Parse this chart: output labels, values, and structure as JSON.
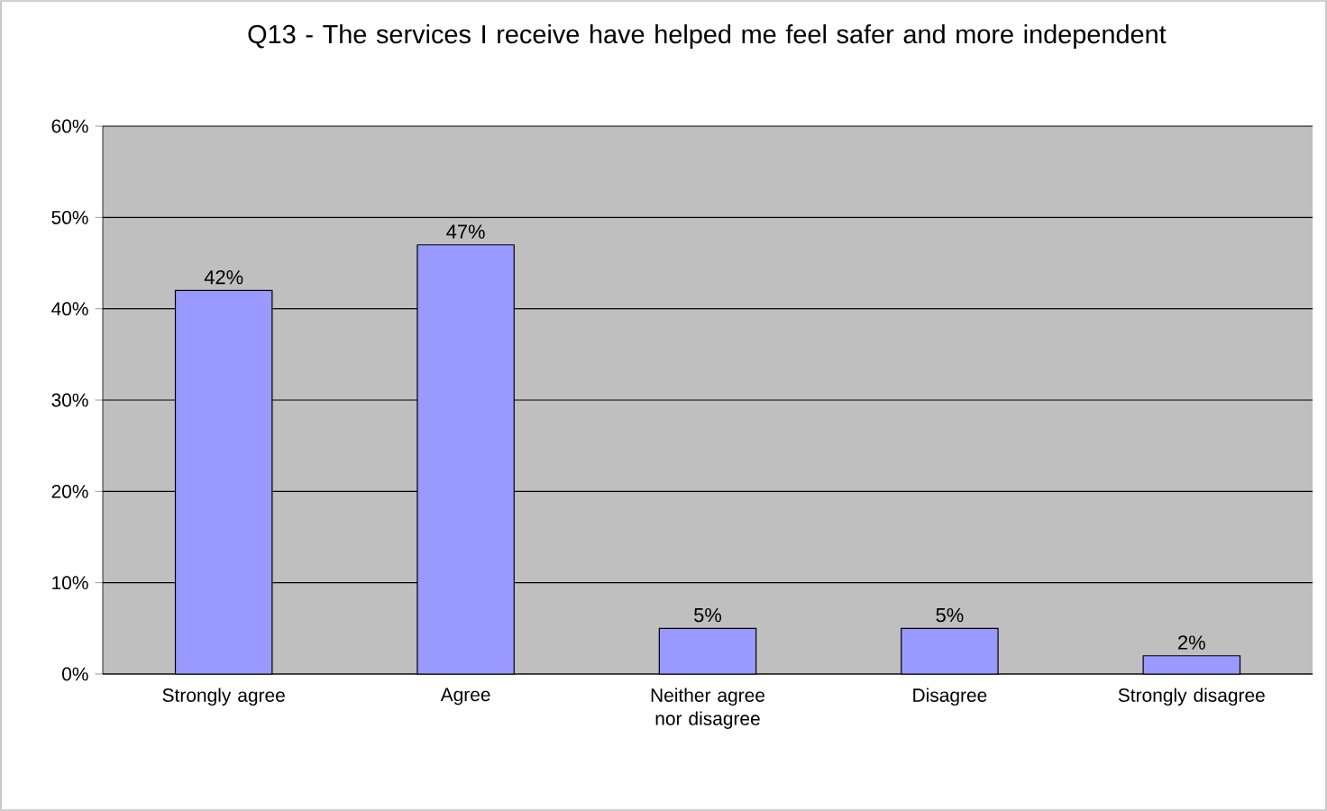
{
  "chart_data": {
    "type": "bar",
    "title": "Q13 - The services I receive have helped me feel safer and more independent",
    "categories": [
      "Strongly agree",
      "Agree",
      "Neither agree nor disagree",
      "Disagree",
      "Strongly disagree"
    ],
    "values": [
      42,
      47,
      5,
      5,
      2
    ],
    "value_labels": [
      "42%",
      "47%",
      "5%",
      "5%",
      "2%"
    ],
    "color": "#9999ff",
    "ylim": [
      0,
      60
    ],
    "yticks": [
      {
        "value": 0,
        "label": "0%"
      },
      {
        "value": 10,
        "label": "10%"
      },
      {
        "value": 20,
        "label": "20%"
      },
      {
        "value": 30,
        "label": "30%"
      },
      {
        "value": 40,
        "label": "40%"
      },
      {
        "value": 50,
        "label": "50%"
      },
      {
        "value": 60,
        "label": "60%"
      }
    ],
    "grid": "y"
  }
}
